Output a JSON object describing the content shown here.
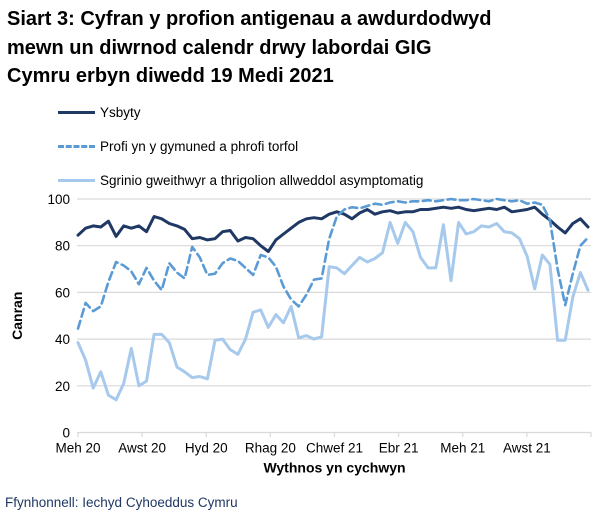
{
  "title": {
    "line1": "Siart 3: Cyfran y profion antigenau a awdurdodwyd",
    "line2": "mewn un diwrnod calendr drwy labordai GIG",
    "line3": "Cymru erbyn diwedd 19 Medi 2021"
  },
  "legend": [
    {
      "label": "Ysbyty",
      "color": "#1f3864",
      "style": "solid"
    },
    {
      "label": "Profi yn y gymuned a phrofi torfol",
      "color": "#5b9bd5",
      "style": "dashed"
    },
    {
      "label": "Sgrinio gweithwyr a thrigolion allweddol asymptomatig",
      "color": "#a6c9ec",
      "style": "solid"
    }
  ],
  "footer": {
    "source": "Ffynhonnell: Iechyd Cyhoeddus Cymru"
  },
  "chart_data": {
    "type": "line",
    "title": "Siart 3: Cyfran y profion antigenau a awdurdodwyd mewn un diwrnod calendr drwy labordai GIG Cymru erbyn diwedd 19 Medi 2021",
    "xlabel": "Wythnos yn cychwyn",
    "ylabel": "Canran",
    "ylim": [
      0,
      100
    ],
    "yticks": [
      0,
      20,
      40,
      60,
      80,
      100
    ],
    "xtick_labels": [
      "Meh 20",
      "Awst 20",
      "Hyd 20",
      "Rhag 20",
      "Chwef 21",
      "Ebr 21",
      "Meh 21",
      "Awst 21"
    ],
    "x_unit": "weekly points, Jun 2020 - Sep 2021",
    "grid": "horizontal",
    "legend_position": "top-left",
    "gridline_color": "#d9d9d9",
    "series": [
      {
        "name": "Ysbyty",
        "color": "#1f3864",
        "dash": false,
        "width": 3,
        "values": [
          84.5,
          87.5,
          88.5,
          88,
          90.5,
          84,
          88.5,
          87.5,
          88.5,
          86,
          92.5,
          91.5,
          89.5,
          88.5,
          87,
          83,
          83.5,
          82.5,
          83,
          86,
          86.5,
          82,
          83.5,
          83,
          80,
          77.5,
          82.5,
          85,
          87.5,
          90,
          91.5,
          92,
          91.5,
          93.5,
          94.5,
          93.5,
          91.5,
          94,
          95.5,
          93.5,
          94.5,
          95,
          94,
          94.5,
          94.5,
          95.5,
          95.5,
          96,
          96.5,
          96,
          96.5,
          95.5,
          95,
          95.5,
          96,
          95.5,
          96.5,
          94.5,
          95,
          95.5,
          96.5,
          93.5,
          91,
          88,
          85.5,
          89.5,
          91.5,
          88
        ]
      },
      {
        "name": "Profi yn y gymuned a phrofi torfol",
        "color": "#5b9bd5",
        "dash": true,
        "width": 2.6,
        "values": [
          44.5,
          55.5,
          52,
          54,
          64.5,
          73,
          71.5,
          69,
          63.5,
          70.5,
          65,
          61,
          72.5,
          68.5,
          66,
          79.5,
          75,
          67.5,
          68,
          72.5,
          74.5,
          73.5,
          70.5,
          67.5,
          76,
          75,
          71,
          62.5,
          57,
          54,
          59,
          65.5,
          66,
          83,
          92.5,
          95.5,
          96.5,
          96,
          97,
          98,
          97.5,
          98.5,
          99,
          98.5,
          99,
          99,
          99.5,
          99,
          99.5,
          100,
          99.5,
          99.5,
          100,
          99.5,
          99,
          100,
          99.5,
          99,
          99.5,
          98,
          98.5,
          97.5,
          91,
          70,
          54.5,
          68,
          80,
          83.5
        ]
      },
      {
        "name": "Sgrinio gweithwyr a thrigolion allweddol asymptomatig",
        "color": "#a6c9ec",
        "dash": false,
        "width": 3,
        "values": [
          38.5,
          31,
          19,
          26,
          16,
          14,
          21,
          36,
          20,
          22,
          42,
          42,
          38.5,
          28,
          26,
          23.5,
          24,
          23,
          39.5,
          40,
          35.5,
          33.5,
          40,
          51.5,
          52.5,
          45,
          50.5,
          47,
          54,
          40.5,
          41.5,
          40,
          41,
          71,
          70.5,
          68,
          71.5,
          75,
          73,
          74.5,
          77,
          90,
          81,
          90,
          86,
          75,
          70.5,
          70.5,
          89,
          65,
          90,
          85,
          86,
          88.5,
          88,
          89.5,
          86,
          85.5,
          83,
          75.5,
          61.5,
          76,
          72,
          39.5,
          39.5,
          58,
          68.5,
          61
        ]
      }
    ]
  }
}
